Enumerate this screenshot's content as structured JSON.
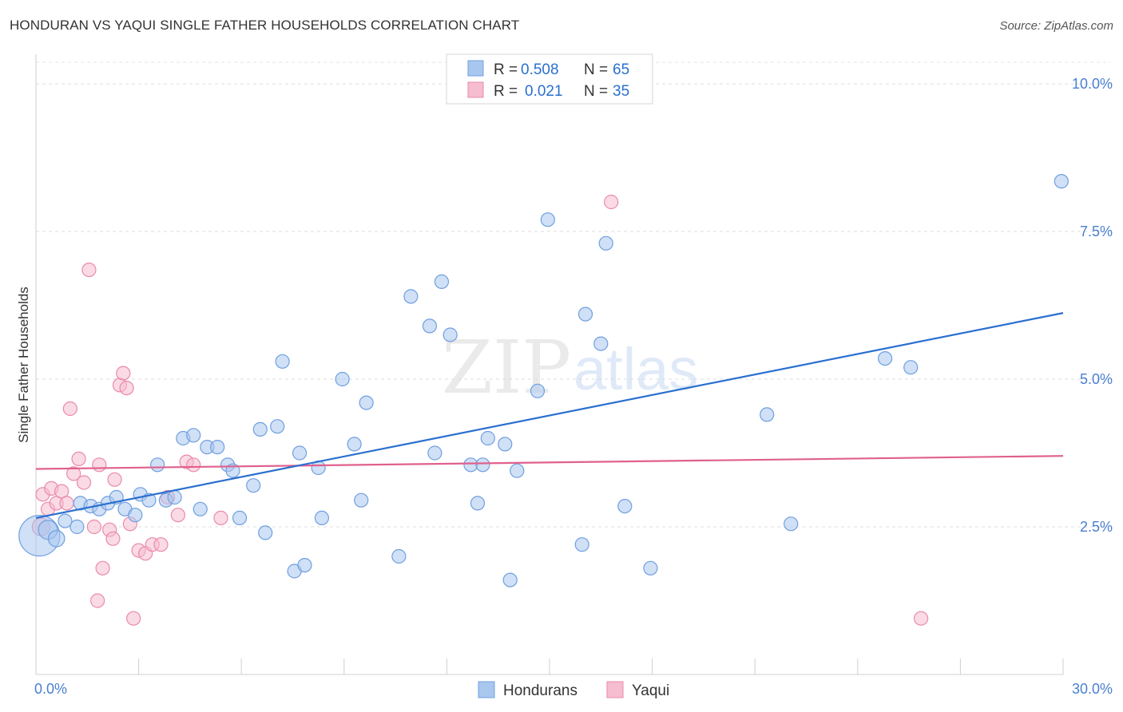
{
  "header": {
    "title": "HONDURAN VS YAQUI SINGLE FATHER HOUSEHOLDS CORRELATION CHART",
    "source": "Source: ZipAtlas.com"
  },
  "watermark": {
    "zip": "ZIP",
    "atlas": "atlas"
  },
  "colors": {
    "hondurans_fill": "#a9c7ee",
    "hondurans_stroke": "#6f9fe0",
    "hondurans_line": "#2a6fcf",
    "yaqui_fill": "#f6bcd0",
    "yaqui_stroke": "#e98aab",
    "yaqui_line": "#e0608e",
    "value_text": "#2a6fcf"
  },
  "stats_legend": {
    "rows": [
      {
        "r_label": "R =",
        "r_value": "0.508",
        "n_label": "N =",
        "n_value": "65"
      },
      {
        "r_label": "R =",
        "r_value": "0.021",
        "n_label": "N =",
        "n_value": "35"
      }
    ]
  },
  "chart_data": {
    "type": "scatter",
    "title": "HONDURAN VS YAQUI SINGLE FATHER HOUSEHOLDS CORRELATION CHART",
    "xlabel": "",
    "ylabel": "Single Father Households",
    "xlim": [
      0,
      30
    ],
    "ylim": [
      0,
      10.5
    ],
    "x_tick_labels": [
      "0.0%",
      "30.0%"
    ],
    "y_ticks": [
      2.5,
      5.0,
      7.5,
      10.0
    ],
    "y_tick_labels": [
      "2.5%",
      "5.0%",
      "7.5%",
      "10.0%"
    ],
    "grid": true,
    "legend": "bottom-center",
    "series": [
      {
        "name": "Hondurans",
        "r": 0.508,
        "n": 65,
        "trend": {
          "x": [
            0,
            30
          ],
          "y": [
            2.65,
            6.12
          ]
        },
        "points": [
          {
            "x": 0.1,
            "y": 2.35,
            "s": 3.0
          },
          {
            "x": 0.35,
            "y": 2.45,
            "s": 1.4
          },
          {
            "x": 0.6,
            "y": 2.3,
            "s": 1.2
          },
          {
            "x": 0.85,
            "y": 2.6
          },
          {
            "x": 1.2,
            "y": 2.5
          },
          {
            "x": 1.3,
            "y": 2.9
          },
          {
            "x": 1.6,
            "y": 2.85
          },
          {
            "x": 1.85,
            "y": 2.8
          },
          {
            "x": 2.1,
            "y": 2.9
          },
          {
            "x": 2.35,
            "y": 3.0
          },
          {
            "x": 2.6,
            "y": 2.8
          },
          {
            "x": 2.9,
            "y": 2.7
          },
          {
            "x": 3.05,
            "y": 3.05
          },
          {
            "x": 3.3,
            "y": 2.95
          },
          {
            "x": 3.55,
            "y": 3.55
          },
          {
            "x": 3.8,
            "y": 2.95
          },
          {
            "x": 4.05,
            "y": 3.0
          },
          {
            "x": 4.3,
            "y": 4.0
          },
          {
            "x": 4.6,
            "y": 4.05
          },
          {
            "x": 4.8,
            "y": 2.8
          },
          {
            "x": 5.0,
            "y": 3.85
          },
          {
            "x": 5.3,
            "y": 3.85
          },
          {
            "x": 5.6,
            "y": 3.55
          },
          {
            "x": 5.75,
            "y": 3.45
          },
          {
            "x": 5.95,
            "y": 2.65
          },
          {
            "x": 6.35,
            "y": 3.2
          },
          {
            "x": 6.55,
            "y": 4.15
          },
          {
            "x": 6.7,
            "y": 2.4
          },
          {
            "x": 7.05,
            "y": 4.2
          },
          {
            "x": 7.2,
            "y": 5.3
          },
          {
            "x": 7.55,
            "y": 1.75
          },
          {
            "x": 7.7,
            "y": 3.75
          },
          {
            "x": 7.85,
            "y": 1.85
          },
          {
            "x": 8.25,
            "y": 3.5
          },
          {
            "x": 8.35,
            "y": 2.65
          },
          {
            "x": 8.95,
            "y": 5.0
          },
          {
            "x": 9.3,
            "y": 3.9
          },
          {
            "x": 9.5,
            "y": 2.95
          },
          {
            "x": 9.65,
            "y": 4.6
          },
          {
            "x": 10.6,
            "y": 2.0
          },
          {
            "x": 10.95,
            "y": 6.4
          },
          {
            "x": 11.5,
            "y": 5.9
          },
          {
            "x": 11.65,
            "y": 3.75
          },
          {
            "x": 11.85,
            "y": 6.65
          },
          {
            "x": 12.1,
            "y": 5.75
          },
          {
            "x": 12.7,
            "y": 3.55
          },
          {
            "x": 12.9,
            "y": 2.9
          },
          {
            "x": 13.05,
            "y": 3.55
          },
          {
            "x": 13.2,
            "y": 4.0
          },
          {
            "x": 13.7,
            "y": 3.9
          },
          {
            "x": 13.85,
            "y": 1.6
          },
          {
            "x": 14.05,
            "y": 3.45
          },
          {
            "x": 14.65,
            "y": 4.8
          },
          {
            "x": 14.95,
            "y": 7.7
          },
          {
            "x": 15.95,
            "y": 2.2
          },
          {
            "x": 16.05,
            "y": 6.1
          },
          {
            "x": 16.5,
            "y": 5.6
          },
          {
            "x": 16.65,
            "y": 7.3
          },
          {
            "x": 17.2,
            "y": 2.85
          },
          {
            "x": 17.95,
            "y": 1.8
          },
          {
            "x": 21.35,
            "y": 4.4
          },
          {
            "x": 22.05,
            "y": 2.55
          },
          {
            "x": 24.8,
            "y": 5.35
          },
          {
            "x": 25.55,
            "y": 5.2
          },
          {
            "x": 29.95,
            "y": 8.35
          }
        ]
      },
      {
        "name": "Yaqui",
        "r": 0.021,
        "n": 35,
        "trend": {
          "x": [
            0,
            30
          ],
          "y": [
            3.48,
            3.7
          ]
        },
        "points": [
          {
            "x": 0.15,
            "y": 2.5,
            "s": 1.3
          },
          {
            "x": 0.2,
            "y": 3.05
          },
          {
            "x": 0.35,
            "y": 2.8
          },
          {
            "x": 0.45,
            "y": 3.15
          },
          {
            "x": 0.6,
            "y": 2.9
          },
          {
            "x": 0.75,
            "y": 3.1
          },
          {
            "x": 0.9,
            "y": 2.9
          },
          {
            "x": 1.0,
            "y": 4.5
          },
          {
            "x": 1.1,
            "y": 3.4
          },
          {
            "x": 1.25,
            "y": 3.65
          },
          {
            "x": 1.4,
            "y": 3.25
          },
          {
            "x": 1.55,
            "y": 6.85
          },
          {
            "x": 1.7,
            "y": 2.5
          },
          {
            "x": 1.8,
            "y": 1.25
          },
          {
            "x": 1.85,
            "y": 3.55
          },
          {
            "x": 1.95,
            "y": 1.8
          },
          {
            "x": 2.15,
            "y": 2.45
          },
          {
            "x": 2.25,
            "y": 2.3
          },
          {
            "x": 2.3,
            "y": 3.3
          },
          {
            "x": 2.45,
            "y": 4.9
          },
          {
            "x": 2.55,
            "y": 5.1
          },
          {
            "x": 2.65,
            "y": 4.85
          },
          {
            "x": 2.75,
            "y": 2.55
          },
          {
            "x": 2.85,
            "y": 0.95
          },
          {
            "x": 3.0,
            "y": 2.1
          },
          {
            "x": 3.2,
            "y": 2.05
          },
          {
            "x": 3.4,
            "y": 2.2
          },
          {
            "x": 3.65,
            "y": 2.2
          },
          {
            "x": 3.85,
            "y": 3.0
          },
          {
            "x": 4.15,
            "y": 2.7
          },
          {
            "x": 4.4,
            "y": 3.6
          },
          {
            "x": 4.6,
            "y": 3.55
          },
          {
            "x": 5.4,
            "y": 2.65
          },
          {
            "x": 16.8,
            "y": 8.0
          },
          {
            "x": 25.85,
            "y": 0.95
          }
        ]
      }
    ]
  }
}
